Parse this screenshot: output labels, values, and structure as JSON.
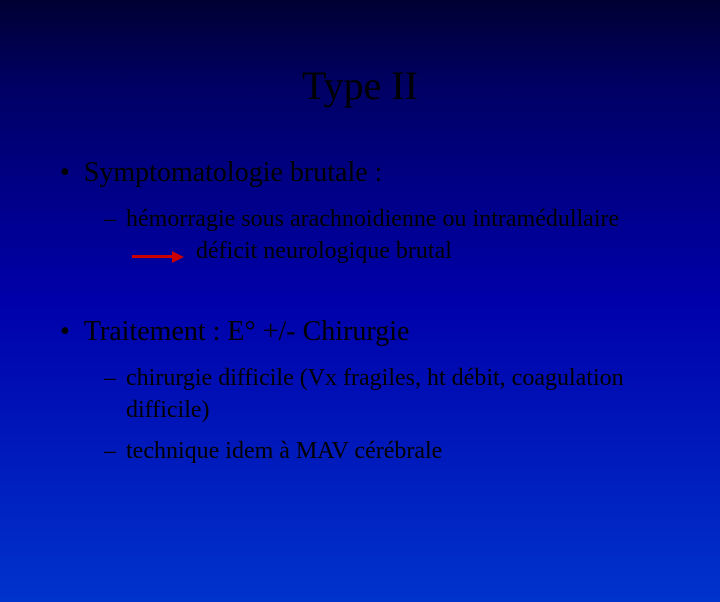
{
  "slide": {
    "title": "Type II",
    "background_gradient": [
      "#000033",
      "#000066",
      "#0000aa",
      "#0033cc"
    ],
    "text_color": "#000000",
    "font_family": "Times New Roman",
    "title_fontsize": 40,
    "bullet_fontsize": 28,
    "sub_fontsize": 24,
    "arrow_color": "#cc0000",
    "bullets": [
      {
        "text": "Symptomatologie brutale :",
        "subs": [
          {
            "pre": "hémorragie sous arachnoidienne ou intramédullaire",
            "arrow": true,
            "post": "déficit neurologique brutal"
          }
        ]
      },
      {
        "text": "Traitement : E° +/- Chirurgie",
        "subs": [
          {
            "pre": "chirurgie difficile (Vx fragiles, ht débit, coagulation difficile)",
            "arrow": false,
            "post": ""
          },
          {
            "pre": "technique idem à MAV cérébrale",
            "arrow": false,
            "post": ""
          }
        ]
      }
    ]
  }
}
